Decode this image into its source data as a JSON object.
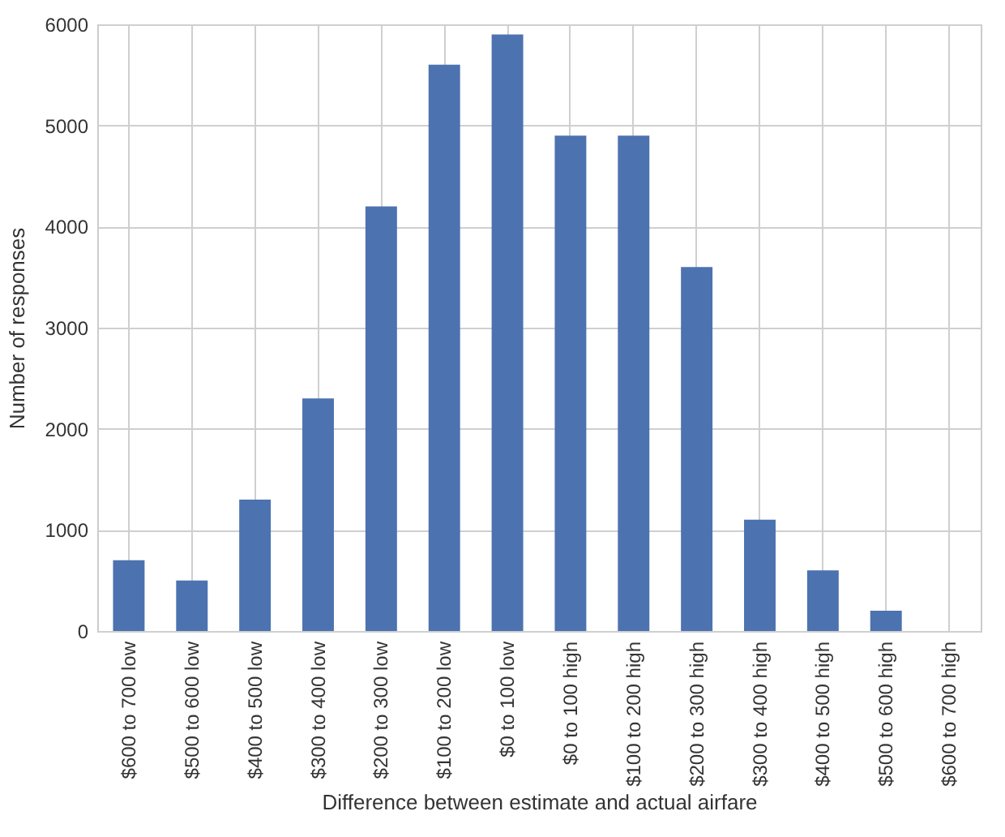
{
  "chart_data": {
    "type": "bar",
    "xlabel": "Difference between estimate and actual airfare",
    "ylabel": "Number of responses",
    "categories": [
      "$600 to 700 low",
      "$500 to 600 low",
      "$400 to 500 low",
      "$300 to 400 low",
      "$200 to 300 low",
      "$100 to 200 low",
      "$0 to 100 low",
      "$0 to 100 high",
      "$100 to 200 high",
      "$200 to 300 high",
      "$300 to 400 high",
      "$400 to 500 high",
      "$500 to 600 high",
      "$600 to 700 high"
    ],
    "values": [
      700,
      500,
      1300,
      2300,
      4200,
      5600,
      5900,
      4900,
      4900,
      3600,
      1100,
      600,
      200,
      0
    ],
    "color": "#4c72b0",
    "ylim": [
      0,
      6000
    ],
    "yticks": [
      0,
      1000,
      2000,
      3000,
      4000,
      5000,
      6000
    ],
    "grid": true
  }
}
